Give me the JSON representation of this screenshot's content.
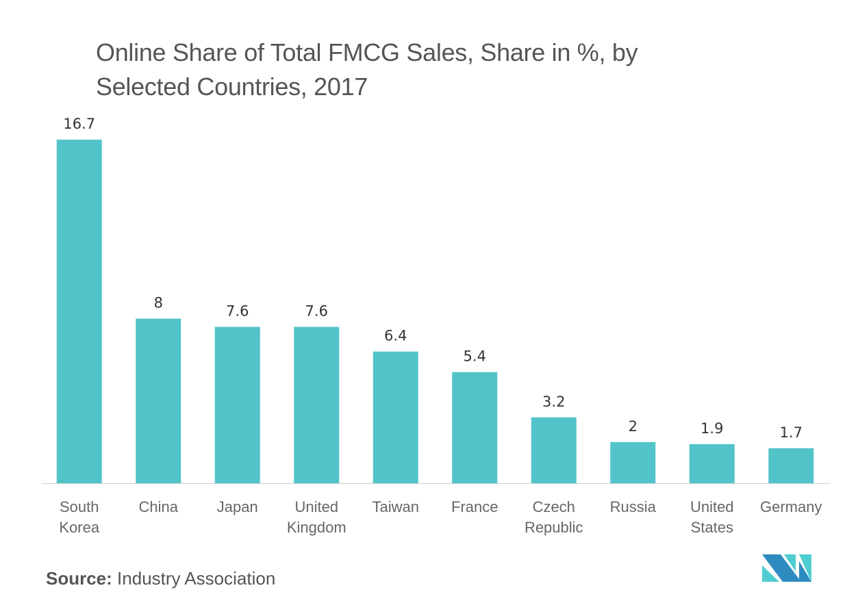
{
  "chart_data": {
    "type": "bar",
    "title": "Online Share of Total FMCG Sales, Share in %, by Selected Countries, 2017",
    "categories": [
      [
        "South",
        "Korea"
      ],
      [
        "China"
      ],
      [
        "Japan"
      ],
      [
        "United",
        "Kingdom"
      ],
      [
        "Taiwan"
      ],
      [
        "France"
      ],
      [
        "Czech",
        "Republic"
      ],
      [
        "Russia"
      ],
      [
        "United",
        "States"
      ],
      [
        "Germany"
      ]
    ],
    "values": [
      16.7,
      8,
      7.6,
      7.6,
      6.4,
      5.4,
      3.2,
      2,
      1.9,
      1.7
    ],
    "value_labels": [
      "16.7",
      "8",
      "7.6",
      "7.6",
      "6.4",
      "5.4",
      "3.2",
      "2",
      "1.9",
      "1.7"
    ],
    "xlabel": "",
    "ylabel": "",
    "ylim": [
      0,
      16.7
    ],
    "grid": false,
    "bar_color": "#52c4c9",
    "axis_color": "#cccccc"
  },
  "source": {
    "label": "Source:",
    "text": "Industry Association"
  },
  "logo": {
    "colors": [
      "#2e8bc0",
      "#4ecdd1"
    ]
  }
}
